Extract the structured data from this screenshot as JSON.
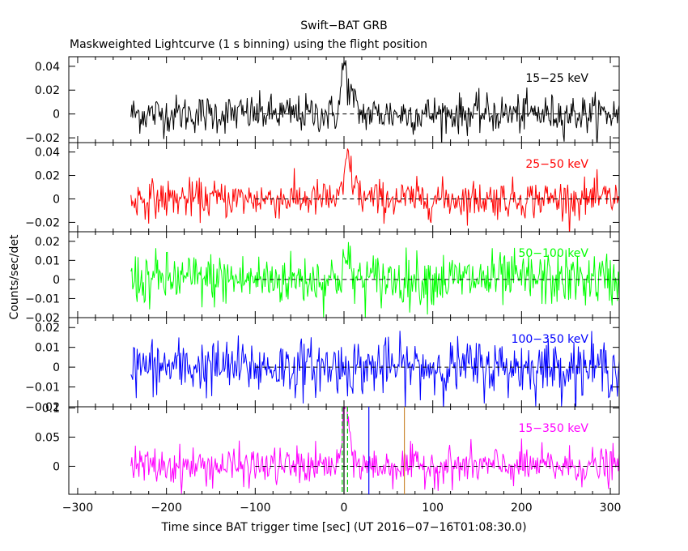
{
  "chart_data": {
    "type": "line",
    "title": "Swift−BAT GRB",
    "subtitle": "Maskweighted Lightcurve (1 s binning) using the flight position",
    "xlabel": "Time since BAT trigger time [sec] (UT 2016−07−16T01:08:30.0)",
    "ylabel": "Counts/sec/det",
    "xlim": [
      -310,
      310
    ],
    "x_ticks": [
      -300,
      -200,
      -100,
      0,
      100,
      200,
      300
    ],
    "x_tick_labels": [
      "−300",
      "−200",
      "−100",
      "0",
      "100",
      "200",
      "300"
    ],
    "data_x_range": [
      -240,
      310
    ],
    "binning_sec": 1,
    "panels": [
      {
        "band": "15−25 keV",
        "color": "#000000",
        "ylim": [
          -0.024,
          0.048
        ],
        "y_ticks": [
          -0.02,
          0,
          0.02,
          0.04
        ],
        "y_tick_labels": [
          "−0.02",
          "0",
          "0.02",
          "0.04"
        ],
        "noise_sd": 0.008,
        "peaks": [
          {
            "t": 0,
            "height": 0.04,
            "width": 3
          },
          {
            "t": 8,
            "height": 0.015,
            "width": 4
          }
        ]
      },
      {
        "band": "25−50 keV",
        "color": "#ff0000",
        "ylim": [
          -0.028,
          0.048
        ],
        "y_ticks": [
          -0.02,
          0,
          0.02,
          0.04
        ],
        "y_tick_labels": [
          "−0.02",
          "0",
          "0.02",
          "0.04"
        ],
        "noise_sd": 0.008,
        "peaks": [
          {
            "t": 4,
            "height": 0.035,
            "width": 3
          },
          {
            "t": 12,
            "height": 0.012,
            "width": 4
          }
        ]
      },
      {
        "band": "50−100 keV",
        "color": "#00ff00",
        "ylim": [
          -0.02,
          0.025
        ],
        "y_ticks": [
          -0.02,
          -0.01,
          0,
          0.01,
          0.02
        ],
        "y_tick_labels": [
          "−0.02",
          "−0.01",
          "0",
          "0.01",
          "0.02"
        ],
        "noise_sd": 0.007,
        "peaks": [
          {
            "t": 2,
            "height": 0.01,
            "width": 4
          }
        ]
      },
      {
        "band": "100−350 keV",
        "color": "#0000ff",
        "ylim": [
          -0.02,
          0.025
        ],
        "y_ticks": [
          -0.02,
          -0.01,
          0,
          0.01,
          0.02
        ],
        "y_tick_labels": [
          "−0.02",
          "−0.01",
          "0",
          "0.01",
          "0.02"
        ],
        "noise_sd": 0.007,
        "peaks": []
      },
      {
        "band": "15−350 keV",
        "color": "#ff00ff",
        "ylim": [
          -0.048,
          0.102
        ],
        "y_ticks": [
          0,
          0.05,
          0.1
        ],
        "y_tick_labels": [
          "0",
          "0.05",
          "0.1"
        ],
        "noise_sd": 0.016,
        "peaks": [
          {
            "t": 1,
            "height": 0.085,
            "width": 3
          },
          {
            "t": 6,
            "height": 0.04,
            "width": 4
          }
        ]
      }
    ],
    "markers": [
      {
        "t": -2,
        "color": "#00cc00",
        "style": "dashed"
      },
      {
        "t": 0,
        "color": "#000000",
        "style": "solid"
      },
      {
        "t": 4,
        "color": "#00cc00",
        "style": "dashed"
      },
      {
        "t": 28,
        "color": "#0000ff",
        "style": "solid"
      },
      {
        "t": 68,
        "color": "#cc8833",
        "style": "solid"
      }
    ],
    "zero_line": {
      "style": "dashed",
      "from_t": -100,
      "color": "#000000"
    }
  }
}
